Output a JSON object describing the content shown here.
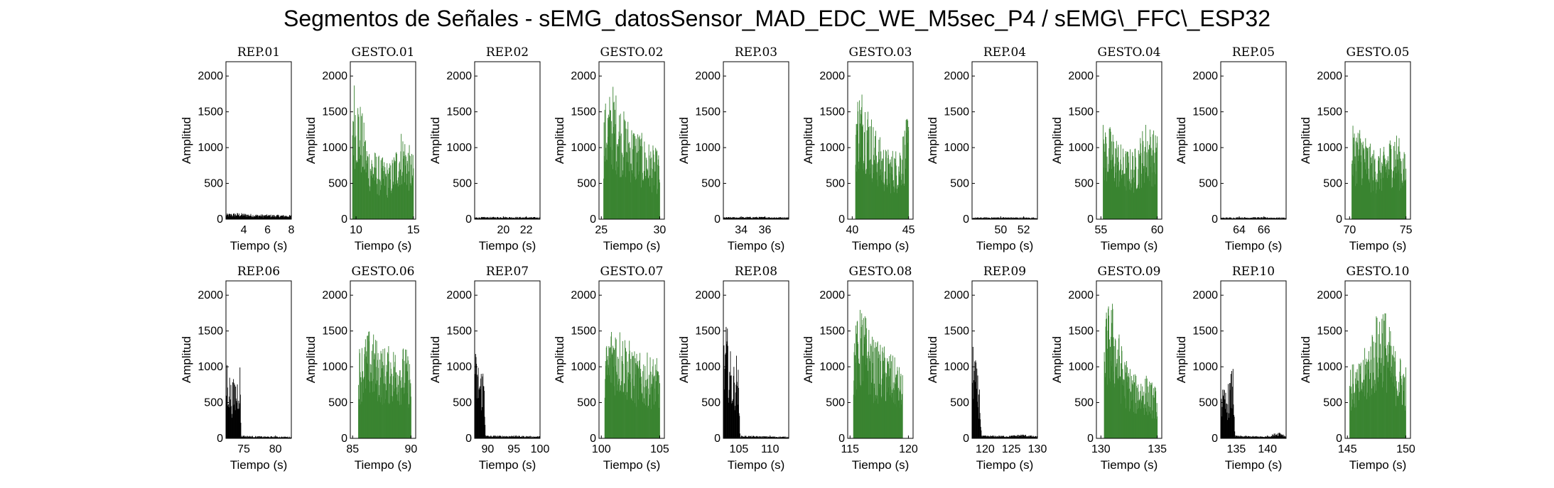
{
  "figure": {
    "title": "Segmentos de Señales - sEMG_datosSensor_MAD_EDC_WE_M5sec_P4 / sEMG\\_FFC\\_ESP32"
  },
  "colors": {
    "rep": "#000000",
    "gesto": "#3a8431",
    "axis": "#000000",
    "background": "#ffffff"
  },
  "chart_data": [
    {
      "type": "bar",
      "title": "REP_01",
      "xlabel": "Tiempo (s)",
      "ylabel": "Amplitud",
      "kind": "rep",
      "xlim": [
        2.5,
        8
      ],
      "ylim": [
        0,
        2200
      ],
      "xticks": [
        4,
        6,
        8
      ],
      "yticks": [
        0,
        500,
        1000,
        1500,
        2000
      ],
      "envelope": [
        {
          "x": 2.5,
          "y": 80
        },
        {
          "x": 3.5,
          "y": 90
        },
        {
          "x": 5,
          "y": 70
        },
        {
          "x": 6.5,
          "y": 65
        },
        {
          "x": 8,
          "y": 60
        }
      ]
    },
    {
      "type": "bar",
      "title": "GESTO_01",
      "xlabel": "Tiempo (s)",
      "ylabel": "Amplitud",
      "kind": "gesto",
      "xlim": [
        9.5,
        15.2
      ],
      "ylim": [
        0,
        2200
      ],
      "xticks": [
        10,
        15
      ],
      "yticks": [
        0,
        500,
        1000,
        1500,
        2000
      ],
      "envelope": [
        {
          "x": 9.7,
          "y": 2100
        },
        {
          "x": 10.2,
          "y": 1800
        },
        {
          "x": 11,
          "y": 1100
        },
        {
          "x": 12,
          "y": 900
        },
        {
          "x": 13,
          "y": 800
        },
        {
          "x": 14,
          "y": 1300
        },
        {
          "x": 15,
          "y": 900
        }
      ]
    },
    {
      "type": "bar",
      "title": "REP_02",
      "xlabel": "Tiempo (s)",
      "ylabel": "Amplitud",
      "kind": "rep",
      "xlim": [
        17.5,
        23.2
      ],
      "ylim": [
        0,
        2200
      ],
      "xticks": [
        20,
        22
      ],
      "yticks": [
        0,
        500,
        1000,
        1500,
        2000
      ],
      "envelope": [
        {
          "x": 17.5,
          "y": 30
        },
        {
          "x": 20,
          "y": 35
        },
        {
          "x": 23.2,
          "y": 30
        }
      ]
    },
    {
      "type": "bar",
      "title": "GESTO_02",
      "xlabel": "Tiempo (s)",
      "ylabel": "Amplitud",
      "kind": "gesto",
      "xlim": [
        24.8,
        30.4
      ],
      "ylim": [
        0,
        2200
      ],
      "xticks": [
        25,
        30
      ],
      "yticks": [
        0,
        500,
        1000,
        1500,
        2000
      ],
      "envelope": [
        {
          "x": 25.2,
          "y": 1600
        },
        {
          "x": 26,
          "y": 1900
        },
        {
          "x": 27,
          "y": 1500
        },
        {
          "x": 28,
          "y": 1300
        },
        {
          "x": 29,
          "y": 1100
        },
        {
          "x": 30,
          "y": 950
        }
      ]
    },
    {
      "type": "bar",
      "title": "REP_03",
      "xlabel": "Tiempo (s)",
      "ylabel": "Amplitud",
      "kind": "rep",
      "xlim": [
        32.5,
        38
      ],
      "ylim": [
        0,
        2200
      ],
      "xticks": [
        34,
        36
      ],
      "yticks": [
        0,
        500,
        1000,
        1500,
        2000
      ],
      "envelope": [
        {
          "x": 32.5,
          "y": 30
        },
        {
          "x": 35,
          "y": 35
        },
        {
          "x": 38,
          "y": 30
        }
      ]
    },
    {
      "type": "bar",
      "title": "GESTO_03",
      "xlabel": "Tiempo (s)",
      "ylabel": "Amplitud",
      "kind": "gesto",
      "xlim": [
        39.6,
        45.4
      ],
      "ylim": [
        0,
        2200
      ],
      "xticks": [
        40,
        45
      ],
      "yticks": [
        0,
        500,
        1000,
        1500,
        2000
      ],
      "envelope": [
        {
          "x": 40.3,
          "y": 1800
        },
        {
          "x": 41,
          "y": 1900
        },
        {
          "x": 42,
          "y": 1300
        },
        {
          "x": 43,
          "y": 1000
        },
        {
          "x": 44,
          "y": 1000
        },
        {
          "x": 45,
          "y": 1500
        }
      ]
    },
    {
      "type": "bar",
      "title": "REP_04",
      "xlabel": "Tiempo (s)",
      "ylabel": "Amplitud",
      "kind": "rep",
      "xlim": [
        47.5,
        53.2
      ],
      "ylim": [
        0,
        2200
      ],
      "xticks": [
        50,
        52
      ],
      "yticks": [
        0,
        500,
        1000,
        1500,
        2000
      ],
      "envelope": [
        {
          "x": 47.5,
          "y": 25
        },
        {
          "x": 50,
          "y": 30
        },
        {
          "x": 53.2,
          "y": 25
        }
      ]
    },
    {
      "type": "bar",
      "title": "GESTO_04",
      "xlabel": "Tiempo (s)",
      "ylabel": "Amplitud",
      "kind": "gesto",
      "xlim": [
        54.6,
        60.4
      ],
      "ylim": [
        0,
        2200
      ],
      "xticks": [
        55,
        60
      ],
      "yticks": [
        0,
        500,
        1000,
        1500,
        2000
      ],
      "envelope": [
        {
          "x": 55.2,
          "y": 1350
        },
        {
          "x": 56,
          "y": 1300
        },
        {
          "x": 57,
          "y": 1000
        },
        {
          "x": 58,
          "y": 1000
        },
        {
          "x": 59,
          "y": 1400
        },
        {
          "x": 60,
          "y": 1200
        }
      ]
    },
    {
      "type": "bar",
      "title": "REP_05",
      "xlabel": "Tiempo (s)",
      "ylabel": "Amplitud",
      "kind": "rep",
      "xlim": [
        62.5,
        67.8
      ],
      "ylim": [
        0,
        2200
      ],
      "xticks": [
        64,
        66
      ],
      "yticks": [
        0,
        500,
        1000,
        1500,
        2000
      ],
      "envelope": [
        {
          "x": 62.5,
          "y": 25
        },
        {
          "x": 65,
          "y": 30
        },
        {
          "x": 67.8,
          "y": 25
        }
      ]
    },
    {
      "type": "bar",
      "title": "GESTO_05",
      "xlabel": "Tiempo (s)",
      "ylabel": "Amplitud",
      "kind": "gesto",
      "xlim": [
        69.6,
        75.4
      ],
      "ylim": [
        0,
        2200
      ],
      "xticks": [
        70,
        75
      ],
      "yticks": [
        0,
        500,
        1000,
        1500,
        2000
      ],
      "envelope": [
        {
          "x": 70.2,
          "y": 1300
        },
        {
          "x": 71,
          "y": 1350
        },
        {
          "x": 72,
          "y": 1000
        },
        {
          "x": 73,
          "y": 1000
        },
        {
          "x": 74,
          "y": 1300
        },
        {
          "x": 75,
          "y": 900
        }
      ]
    },
    {
      "type": "bar",
      "title": "REP_06",
      "xlabel": "Tiempo (s)",
      "ylabel": "Amplitud",
      "kind": "rep",
      "xlim": [
        72.2,
        82.5
      ],
      "ylim": [
        0,
        2200
      ],
      "xticks": [
        75,
        80
      ],
      "yticks": [
        0,
        500,
        1000,
        1500,
        2000
      ],
      "envelope": [
        {
          "x": 72.3,
          "y": 1200
        },
        {
          "x": 73,
          "y": 800
        },
        {
          "x": 74,
          "y": 900
        },
        {
          "x": 74.4,
          "y": 1150
        },
        {
          "x": 74.6,
          "y": 40
        },
        {
          "x": 78,
          "y": 30
        },
        {
          "x": 82.5,
          "y": 25
        }
      ]
    },
    {
      "type": "bar",
      "title": "GESTO_06",
      "xlabel": "Tiempo (s)",
      "ylabel": "Amplitud",
      "kind": "gesto",
      "xlim": [
        84.8,
        90.4
      ],
      "ylim": [
        0,
        2200
      ],
      "xticks": [
        85,
        90
      ],
      "yticks": [
        0,
        500,
        1000,
        1500,
        2000
      ],
      "envelope": [
        {
          "x": 85.5,
          "y": 1300
        },
        {
          "x": 86.5,
          "y": 1550
        },
        {
          "x": 87.5,
          "y": 1300
        },
        {
          "x": 88.5,
          "y": 1300
        },
        {
          "x": 89.5,
          "y": 1300
        },
        {
          "x": 90,
          "y": 1100
        }
      ]
    },
    {
      "type": "bar",
      "title": "REP_07",
      "xlabel": "Tiempo (s)",
      "ylabel": "Amplitud",
      "kind": "rep",
      "xlim": [
        87.5,
        100
      ],
      "ylim": [
        0,
        2200
      ],
      "xticks": [
        90,
        95,
        100
      ],
      "yticks": [
        0,
        500,
        1000,
        1500,
        2000
      ],
      "envelope": [
        {
          "x": 87.6,
          "y": 1250
        },
        {
          "x": 88.5,
          "y": 1000
        },
        {
          "x": 89.3,
          "y": 1050
        },
        {
          "x": 89.6,
          "y": 40
        },
        {
          "x": 95,
          "y": 40
        },
        {
          "x": 100,
          "y": 30
        }
      ]
    },
    {
      "type": "bar",
      "title": "GESTO_07",
      "xlabel": "Tiempo (s)",
      "ylabel": "Amplitud",
      "kind": "gesto",
      "xlim": [
        99.8,
        105.4
      ],
      "ylim": [
        0,
        2200
      ],
      "xticks": [
        100,
        105
      ],
      "yticks": [
        0,
        500,
        1000,
        1500,
        2000
      ],
      "envelope": [
        {
          "x": 100.3,
          "y": 1300
        },
        {
          "x": 101,
          "y": 1700
        },
        {
          "x": 102,
          "y": 1500
        },
        {
          "x": 103,
          "y": 1200
        },
        {
          "x": 104,
          "y": 1200
        },
        {
          "x": 105,
          "y": 1100
        }
      ]
    },
    {
      "type": "bar",
      "title": "REP_08",
      "xlabel": "Tiempo (s)",
      "ylabel": "Amplitud",
      "kind": "rep",
      "xlim": [
        102.5,
        113
      ],
      "ylim": [
        0,
        2200
      ],
      "xticks": [
        105,
        110
      ],
      "yticks": [
        0,
        500,
        1000,
        1500,
        2000
      ],
      "envelope": [
        {
          "x": 102.6,
          "y": 1350
        },
        {
          "x": 103,
          "y": 1650
        },
        {
          "x": 104,
          "y": 1000
        },
        {
          "x": 104.8,
          "y": 1250
        },
        {
          "x": 105.2,
          "y": 40
        },
        {
          "x": 110,
          "y": 30
        },
        {
          "x": 113,
          "y": 25
        }
      ]
    },
    {
      "type": "bar",
      "title": "GESTO_08",
      "xlabel": "Tiempo (s)",
      "ylabel": "Amplitud",
      "kind": "gesto",
      "xlim": [
        114.8,
        120.4
      ],
      "ylim": [
        0,
        2200
      ],
      "xticks": [
        115,
        120
      ],
      "yticks": [
        0,
        500,
        1000,
        1500,
        2000
      ],
      "envelope": [
        {
          "x": 115.3,
          "y": 1500
        },
        {
          "x": 116,
          "y": 1900
        },
        {
          "x": 117,
          "y": 1400
        },
        {
          "x": 118,
          "y": 1300
        },
        {
          "x": 119,
          "y": 1100
        },
        {
          "x": 119.5,
          "y": 900
        }
      ]
    },
    {
      "type": "bar",
      "title": "REP_09",
      "xlabel": "Tiempo (s)",
      "ylabel": "Amplitud",
      "kind": "rep",
      "xlim": [
        117.5,
        130
      ],
      "ylim": [
        0,
        2200
      ],
      "xticks": [
        120,
        125,
        130
      ],
      "yticks": [
        0,
        500,
        1000,
        1500,
        2000
      ],
      "envelope": [
        {
          "x": 117.6,
          "y": 1500
        },
        {
          "x": 118.3,
          "y": 1050
        },
        {
          "x": 119,
          "y": 700
        },
        {
          "x": 119.3,
          "y": 40
        },
        {
          "x": 125,
          "y": 40
        },
        {
          "x": 127,
          "y": 60
        },
        {
          "x": 130,
          "y": 30
        }
      ]
    },
    {
      "type": "bar",
      "title": "GESTO_09",
      "xlabel": "Tiempo (s)",
      "ylabel": "Amplitud",
      "kind": "gesto",
      "xlim": [
        129.6,
        135.4
      ],
      "ylim": [
        0,
        2200
      ],
      "xticks": [
        130,
        135
      ],
      "yticks": [
        0,
        500,
        1000,
        1500,
        2000
      ],
      "envelope": [
        {
          "x": 130.3,
          "y": 1800
        },
        {
          "x": 131,
          "y": 1950
        },
        {
          "x": 132,
          "y": 1200
        },
        {
          "x": 133,
          "y": 900
        },
        {
          "x": 134,
          "y": 900
        },
        {
          "x": 135,
          "y": 700
        }
      ]
    },
    {
      "type": "bar",
      "title": "REP_10",
      "xlabel": "Tiempo (s)",
      "ylabel": "Amplitud",
      "kind": "rep",
      "xlim": [
        132.5,
        143
      ],
      "ylim": [
        0,
        2200
      ],
      "xticks": [
        135,
        140
      ],
      "yticks": [
        0,
        500,
        1000,
        1500,
        2000
      ],
      "envelope": [
        {
          "x": 132.6,
          "y": 700
        },
        {
          "x": 133.5,
          "y": 700
        },
        {
          "x": 134.5,
          "y": 1050
        },
        {
          "x": 134.8,
          "y": 40
        },
        {
          "x": 140,
          "y": 30
        },
        {
          "x": 142,
          "y": 100
        },
        {
          "x": 143,
          "y": 30
        }
      ]
    },
    {
      "type": "bar",
      "title": "GESTO_10",
      "xlabel": "Tiempo (s)",
      "ylabel": "Amplitud",
      "kind": "gesto",
      "xlim": [
        144.8,
        150.4
      ],
      "ylim": [
        0,
        2200
      ],
      "xticks": [
        145,
        150
      ],
      "yticks": [
        0,
        500,
        1000,
        1500,
        2000
      ],
      "envelope": [
        {
          "x": 145.2,
          "y": 1050
        },
        {
          "x": 146,
          "y": 1050
        },
        {
          "x": 147,
          "y": 1500
        },
        {
          "x": 148,
          "y": 2000
        },
        {
          "x": 149,
          "y": 1300
        },
        {
          "x": 150,
          "y": 1050
        }
      ]
    }
  ]
}
